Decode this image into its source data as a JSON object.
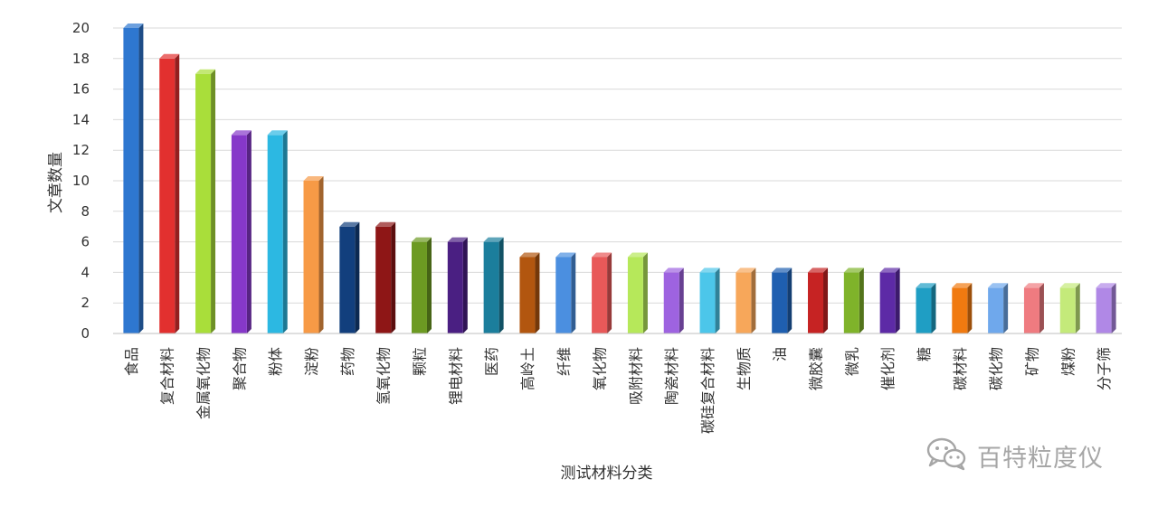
{
  "chart_data": {
    "type": "bar",
    "title": "",
    "xlabel": "测试材料分类",
    "ylabel": "文章数量",
    "ylim": [
      0,
      20
    ],
    "yticks": [
      0,
      2,
      4,
      6,
      8,
      10,
      12,
      14,
      16,
      18,
      20
    ],
    "grid": true,
    "categories": [
      "食品",
      "复合材料",
      "金属氧化物",
      "聚合物",
      "粉体",
      "淀粉",
      "药物",
      "氢氧化物",
      "颗粒",
      "锂电材料",
      "医药",
      "高岭土",
      "纤维",
      "氧化物",
      "吸附材料",
      "陶瓷材料",
      "碳硅复合材料",
      "生物质",
      "油",
      "微胶囊",
      "微乳",
      "催化剂",
      "糖",
      "碳材料",
      "碳化物",
      "矿物",
      "煤粉",
      "分子筛"
    ],
    "values": [
      20,
      18,
      17,
      13,
      13,
      10,
      7,
      7,
      6,
      6,
      6,
      5,
      5,
      5,
      5,
      4,
      4,
      4,
      4,
      4,
      4,
      4,
      3,
      3,
      3,
      3,
      3,
      3
    ],
    "colors": [
      "#2e77d0",
      "#e2302f",
      "#a9de3a",
      "#8638c9",
      "#2cb8e2",
      "#f79a46",
      "#123f7d",
      "#8e1616",
      "#6c9a22",
      "#4a1f82",
      "#1b7e9c",
      "#b2560f",
      "#4b8fe0",
      "#e85959",
      "#b6e85a",
      "#9e63e0",
      "#4cc6ea",
      "#f7a75a",
      "#1f5fb0",
      "#c62323",
      "#7fb32a",
      "#5d2aa6",
      "#1f9ec4",
      "#f07a10",
      "#6fa8ec",
      "#ef7b80",
      "#c4ea7a",
      "#b088e6"
    ]
  },
  "watermark": {
    "icon": "wechat-icon",
    "text": "百特粒度仪"
  }
}
